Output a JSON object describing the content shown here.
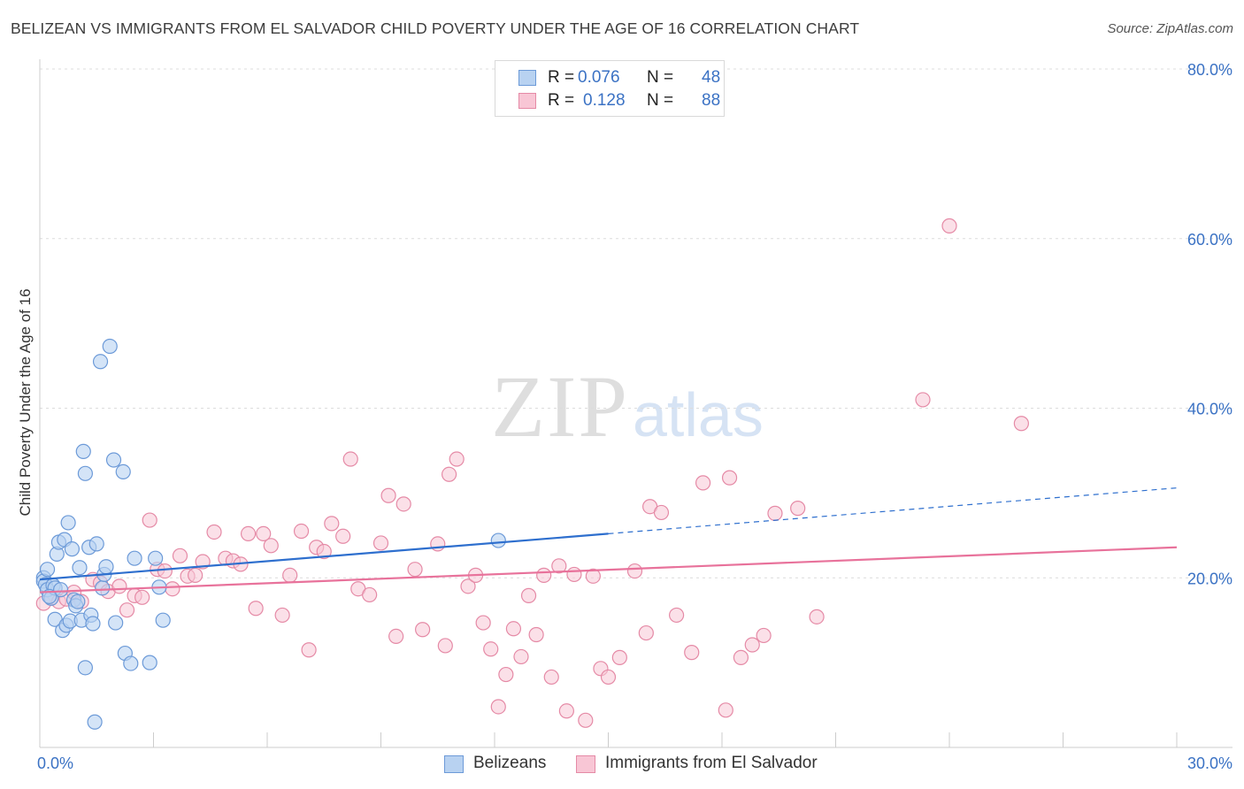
{
  "title": "BELIZEAN VS IMMIGRANTS FROM EL SALVADOR CHILD POVERTY UNDER THE AGE OF 16 CORRELATION CHART",
  "source": "Source: ZipAtlas.com",
  "watermark": {
    "zip": "ZIP",
    "atlas": "atlas"
  },
  "legend_top": [
    {
      "r_label": "R =",
      "r_value": "0.076",
      "n_label": "N =",
      "n_value": "48"
    },
    {
      "r_label": "R =",
      "r_value": "0.128",
      "n_label": "N =",
      "n_value": "88"
    }
  ],
  "legend_bottom": [
    "Belizeans",
    "Immigrants from El Salvador"
  ],
  "colors": {
    "blue_fill": "#b8d2f1",
    "blue_stroke": "#6c9ad8",
    "blue_line": "#2e6fce",
    "pink_fill": "#f8c6d5",
    "pink_stroke": "#e58aa6",
    "pink_line": "#e8729b",
    "tick_text": "#3b72c4",
    "grid": "#dcdcdc"
  },
  "chart_data": {
    "type": "scatter",
    "title": "BELIZEAN VS IMMIGRANTS FROM EL SALVADOR CHILD POVERTY UNDER THE AGE OF 16 CORRELATION CHART",
    "xlabel": "",
    "ylabel": "Child Poverty Under the Age of 16",
    "xlim": [
      0,
      30
    ],
    "ylim": [
      0,
      80
    ],
    "x_tick_labels": [
      "0.0%",
      "30.0%"
    ],
    "y_ticks": [
      20,
      40,
      60,
      80
    ],
    "y_tick_labels": [
      "20.0%",
      "40.0%",
      "60.0%",
      "80.0%"
    ],
    "grid": true,
    "legend": "top-center",
    "series": [
      {
        "name": "Belizeans",
        "r": 0.076,
        "n": 48,
        "trend": {
          "x": [
            0,
            15
          ],
          "y": [
            19.8,
            25.2
          ]
        },
        "trend_dashed": {
          "x": [
            15,
            30
          ],
          "y": [
            25.2,
            30.6
          ]
        },
        "points": [
          [
            0.1,
            20.0
          ],
          [
            0.1,
            19.6
          ],
          [
            0.15,
            19.2
          ],
          [
            0.2,
            21.0
          ],
          [
            0.2,
            18.6
          ],
          [
            0.3,
            17.6
          ],
          [
            0.35,
            19.1
          ],
          [
            0.4,
            18.8
          ],
          [
            0.4,
            15.1
          ],
          [
            0.45,
            22.8
          ],
          [
            0.5,
            24.2
          ],
          [
            0.55,
            18.6
          ],
          [
            0.6,
            13.8
          ],
          [
            0.65,
            24.5
          ],
          [
            0.7,
            14.4
          ],
          [
            0.75,
            26.5
          ],
          [
            0.8,
            14.9
          ],
          [
            0.85,
            23.4
          ],
          [
            0.9,
            17.4
          ],
          [
            0.95,
            16.7
          ],
          [
            1.0,
            17.2
          ],
          [
            1.05,
            21.2
          ],
          [
            1.1,
            15.0
          ],
          [
            1.15,
            34.9
          ],
          [
            1.2,
            32.3
          ],
          [
            1.2,
            9.4
          ],
          [
            1.3,
            23.6
          ],
          [
            1.35,
            15.6
          ],
          [
            1.4,
            14.6
          ],
          [
            1.45,
            3.0
          ],
          [
            1.5,
            24.0
          ],
          [
            1.6,
            45.5
          ],
          [
            1.65,
            18.8
          ],
          [
            1.7,
            20.4
          ],
          [
            1.75,
            21.3
          ],
          [
            1.85,
            47.3
          ],
          [
            1.95,
            33.9
          ],
          [
            2.0,
            14.7
          ],
          [
            2.2,
            32.5
          ],
          [
            2.25,
            11.1
          ],
          [
            2.4,
            9.9
          ],
          [
            2.5,
            22.3
          ],
          [
            2.9,
            10.0
          ],
          [
            3.05,
            22.3
          ],
          [
            3.15,
            18.9
          ],
          [
            3.25,
            15.0
          ],
          [
            12.1,
            24.4
          ],
          [
            0.25,
            17.8
          ]
        ]
      },
      {
        "name": "Immigrants from El Salvador",
        "r": 0.128,
        "n": 88,
        "trend": {
          "x": [
            0,
            30
          ],
          "y": [
            18.3,
            23.6
          ]
        },
        "points": [
          [
            0.1,
            17.0
          ],
          [
            0.3,
            17.6
          ],
          [
            0.5,
            17.2
          ],
          [
            0.7,
            17.5
          ],
          [
            0.9,
            18.3
          ],
          [
            1.1,
            17.2
          ],
          [
            1.4,
            19.8
          ],
          [
            1.6,
            19.4
          ],
          [
            1.8,
            18.4
          ],
          [
            2.1,
            19.0
          ],
          [
            2.3,
            16.2
          ],
          [
            2.5,
            17.9
          ],
          [
            2.7,
            17.7
          ],
          [
            2.9,
            26.8
          ],
          [
            3.1,
            21.0
          ],
          [
            3.3,
            20.8
          ],
          [
            3.5,
            18.7
          ],
          [
            3.7,
            22.6
          ],
          [
            3.9,
            20.2
          ],
          [
            4.1,
            20.3
          ],
          [
            4.3,
            21.9
          ],
          [
            4.6,
            25.4
          ],
          [
            4.9,
            22.3
          ],
          [
            5.1,
            22.0
          ],
          [
            5.3,
            21.6
          ],
          [
            5.5,
            25.2
          ],
          [
            5.7,
            16.4
          ],
          [
            5.9,
            25.2
          ],
          [
            6.1,
            23.8
          ],
          [
            6.4,
            15.6
          ],
          [
            6.6,
            20.3
          ],
          [
            6.9,
            25.5
          ],
          [
            7.1,
            11.5
          ],
          [
            7.3,
            23.6
          ],
          [
            7.5,
            23.1
          ],
          [
            7.7,
            26.4
          ],
          [
            8.0,
            24.9
          ],
          [
            8.2,
            34.0
          ],
          [
            8.4,
            18.7
          ],
          [
            8.7,
            18.0
          ],
          [
            9.0,
            24.1
          ],
          [
            9.2,
            29.7
          ],
          [
            9.4,
            13.1
          ],
          [
            9.6,
            28.7
          ],
          [
            9.9,
            21.0
          ],
          [
            10.1,
            13.9
          ],
          [
            10.5,
            24.0
          ],
          [
            10.7,
            12.0
          ],
          [
            10.8,
            32.2
          ],
          [
            11.0,
            34.0
          ],
          [
            11.3,
            19.0
          ],
          [
            11.5,
            20.3
          ],
          [
            11.7,
            14.7
          ],
          [
            11.9,
            11.6
          ],
          [
            12.1,
            4.8
          ],
          [
            12.3,
            8.6
          ],
          [
            12.5,
            14.0
          ],
          [
            12.7,
            10.7
          ],
          [
            12.9,
            17.9
          ],
          [
            13.1,
            13.3
          ],
          [
            13.3,
            20.3
          ],
          [
            13.5,
            8.3
          ],
          [
            13.7,
            21.4
          ],
          [
            13.9,
            4.3
          ],
          [
            14.1,
            20.4
          ],
          [
            14.4,
            3.2
          ],
          [
            14.6,
            20.2
          ],
          [
            14.8,
            9.3
          ],
          [
            15.0,
            8.3
          ],
          [
            15.3,
            10.6
          ],
          [
            15.7,
            20.8
          ],
          [
            16.0,
            13.5
          ],
          [
            16.1,
            28.4
          ],
          [
            16.4,
            27.7
          ],
          [
            16.8,
            15.6
          ],
          [
            17.2,
            11.2
          ],
          [
            17.5,
            31.2
          ],
          [
            18.1,
            4.4
          ],
          [
            18.2,
            31.8
          ],
          [
            18.5,
            10.6
          ],
          [
            18.8,
            12.1
          ],
          [
            19.1,
            13.2
          ],
          [
            19.4,
            27.6
          ],
          [
            20.0,
            28.2
          ],
          [
            20.5,
            15.4
          ],
          [
            23.3,
            41.0
          ],
          [
            24.0,
            61.5
          ],
          [
            25.9,
            38.2
          ]
        ]
      }
    ]
  }
}
